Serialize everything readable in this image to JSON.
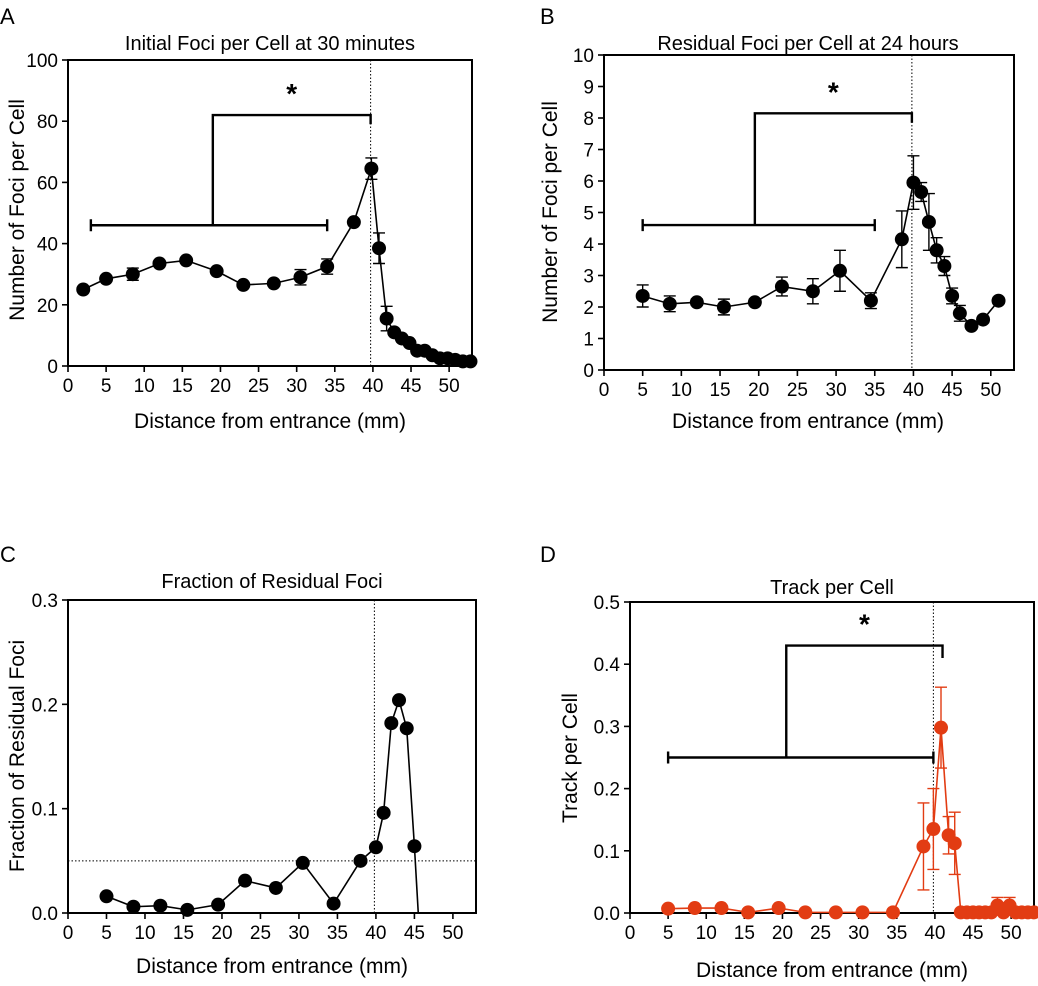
{
  "panels": [
    {
      "letter": "A",
      "title": "Initial Foci per Cell at 30 minutes",
      "xlabel": "Distance from entrance (mm)",
      "ylabel": "Number of Foci per Cell"
    },
    {
      "letter": "B",
      "title": "Residual Foci per Cell at 24 hours",
      "xlabel": "Distance from entrance (mm)",
      "ylabel": "Number of Foci per Cell"
    },
    {
      "letter": "C",
      "title": "Fraction of Residual Foci",
      "xlabel": "Distance from entrance (mm)",
      "ylabel": "Fraction of Residual Foci"
    },
    {
      "letter": "D",
      "title": "Track per Cell",
      "xlabel": "Distance from entrance (mm)",
      "ylabel": "Track per Cell"
    }
  ],
  "chart_data": [
    {
      "type": "line",
      "panel": "A",
      "title": "Initial Foci per Cell at 30 minutes",
      "xlabel": "Distance from entrance (mm)",
      "ylabel": "Number of Foci per Cell",
      "xlim": [
        0,
        53
      ],
      "ylim": [
        0,
        100
      ],
      "xticks": [
        0,
        5,
        10,
        15,
        20,
        25,
        30,
        35,
        40,
        45,
        50
      ],
      "yticks": [
        0,
        20,
        40,
        60,
        80,
        100
      ],
      "ytick_labels": [
        "0",
        "20",
        "40",
        "60",
        "80",
        "100"
      ],
      "color": "#000000",
      "x": [
        2,
        5,
        8.5,
        12,
        15.5,
        19.5,
        23,
        27,
        30.5,
        34,
        37.5,
        39.8,
        40.8,
        41.8,
        42.8,
        43.8,
        44.8,
        45.8,
        46.8,
        47.8,
        48.8,
        49.8,
        50.8,
        51.8,
        52.8
      ],
      "values": [
        25,
        28.5,
        30,
        33.5,
        34.5,
        31,
        26.5,
        27,
        29,
        32.5,
        47,
        64.5,
        38.5,
        15.5,
        11,
        9,
        7.5,
        5,
        5,
        3.5,
        2.5,
        2.5,
        2,
        1.5,
        1.5
      ],
      "errors": [
        0,
        0,
        2,
        0,
        0,
        0,
        0,
        0,
        2.5,
        2.5,
        0,
        3.5,
        5,
        4,
        0,
        0,
        0,
        0,
        0,
        0,
        0,
        0,
        0,
        0,
        0
      ],
      "vline_x": 39.7,
      "bracket": {
        "x1": 3,
        "x2": 34,
        "bar_y": 46,
        "mid_x": 19,
        "top_y": 82,
        "x_right": 39.7,
        "end_y": 79
      },
      "annotation": "*"
    },
    {
      "type": "line",
      "panel": "B",
      "title": "Residual Foci per Cell at 24 hours",
      "xlabel": "Distance from entrance (mm)",
      "ylabel": "Number of Foci per Cell",
      "xlim": [
        0,
        53
      ],
      "ylim": [
        0,
        10
      ],
      "xticks": [
        0,
        5,
        10,
        15,
        20,
        25,
        30,
        35,
        40,
        45,
        50
      ],
      "yticks": [
        0,
        1,
        2,
        3,
        4,
        5,
        6,
        7,
        8,
        9,
        10
      ],
      "ytick_labels": [
        "0",
        "1",
        "2",
        "3",
        "4",
        "5",
        "6",
        "7",
        "8",
        "9",
        "10"
      ],
      "color": "#000000",
      "x": [
        5,
        8.5,
        12,
        15.5,
        19.5,
        23,
        27,
        30.5,
        34.5,
        38.5,
        40,
        41,
        42,
        43,
        44,
        45,
        46,
        47.5,
        49,
        51
      ],
      "values": [
        2.35,
        2.1,
        2.15,
        2.0,
        2.15,
        2.65,
        2.5,
        3.15,
        2.2,
        4.15,
        5.95,
        5.65,
        4.7,
        3.8,
        3.3,
        2.35,
        1.8,
        1.4,
        1.6,
        2.2
      ],
      "errors": [
        0.35,
        0.25,
        0.1,
        0.25,
        0.1,
        0.3,
        0.4,
        0.65,
        0.25,
        0.9,
        0.85,
        0.3,
        0.9,
        0.4,
        0.3,
        0.25,
        0.25,
        0.1,
        0.1,
        0.1
      ],
      "vline_x": 39.8,
      "bracket": {
        "x1": 5,
        "x2": 35,
        "bar_y": 4.6,
        "mid_x": 19.5,
        "top_y": 8.15,
        "x_right": 39.8,
        "end_y": 7.85
      },
      "annotation": "*"
    },
    {
      "type": "line",
      "panel": "C",
      "title": "Fraction of Residual Foci",
      "xlabel": "Distance from entrance (mm)",
      "ylabel": "Fraction of Residual Foci",
      "xlim": [
        0,
        53
      ],
      "ylim": [
        0,
        0.3
      ],
      "xticks": [
        0,
        5,
        10,
        15,
        20,
        25,
        30,
        35,
        40,
        45,
        50
      ],
      "yticks": [
        0,
        0.1,
        0.2,
        0.3
      ],
      "ytick_labels": [
        "0.0",
        "0.1",
        "0.2",
        "0.3"
      ],
      "color": "#000000",
      "x": [
        5,
        8.5,
        12,
        15.5,
        19.5,
        23,
        27,
        30.5,
        34.5,
        38,
        40,
        41,
        42,
        43,
        44,
        45
      ],
      "values": [
        0.016,
        0.006,
        0.007,
        0.003,
        0.008,
        0.031,
        0.024,
        0.048,
        0.009,
        0.05,
        0.063,
        0.096,
        0.182,
        0.204,
        0.177,
        0.064
      ],
      "errors": [],
      "tail_to_zero_x": 45.5,
      "vline_x": 39.8,
      "hline_y": 0.05
    },
    {
      "type": "line",
      "panel": "D",
      "title": "Track per Cell",
      "xlabel": "Distance from entrance (mm)",
      "ylabel": "Track per Cell",
      "xlim": [
        0,
        53
      ],
      "ylim": [
        0,
        0.5
      ],
      "xticks": [
        0,
        5,
        10,
        15,
        20,
        25,
        30,
        35,
        40,
        45,
        50
      ],
      "yticks": [
        0,
        0.1,
        0.2,
        0.3,
        0.4,
        0.5
      ],
      "ytick_labels": [
        "0.0",
        "0.1",
        "0.2",
        "0.3",
        "0.4",
        "0.5"
      ],
      "color": "#e23c13",
      "x": [
        5,
        8.5,
        12,
        15.5,
        19.5,
        23,
        27,
        30.5,
        34.5,
        38.5,
        39.8,
        40.8,
        41.8,
        42.6,
        43.4,
        44.2,
        45,
        45.8,
        46.6,
        47.4,
        48.2,
        49,
        49.8,
        50.6,
        51.4,
        52.2,
        53
      ],
      "values": [
        0.007,
        0.008,
        0.008,
        0.001,
        0.008,
        0.001,
        0.001,
        0.001,
        0.001,
        0.107,
        0.135,
        0.298,
        0.125,
        0.112,
        0.001,
        0.001,
        0.001,
        0.001,
        0.001,
        0.001,
        0.012,
        0.001,
        0.012,
        0.001,
        0.001,
        0.001,
        0.001
      ],
      "errors": [
        0,
        0,
        0,
        0,
        0,
        0,
        0,
        0,
        0,
        0.07,
        0.065,
        0.065,
        0.03,
        0.05,
        0,
        0,
        0,
        0,
        0,
        0,
        0.013,
        0,
        0.013,
        0,
        0,
        0,
        0
      ],
      "vline_x": 39.8,
      "bracket": {
        "x1": 5,
        "x2": 39.8,
        "bar_y": 0.25,
        "mid_x": 20.5,
        "top_y": 0.43,
        "x_right": 41,
        "end_y": 0.41
      },
      "annotation": "*"
    }
  ]
}
